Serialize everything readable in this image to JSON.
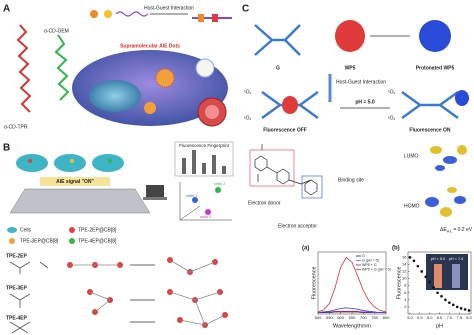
{
  "panel_a": {
    "label": "A",
    "alpha_cd_gem": "α-CD-GEM",
    "alpha_cd_tpr": "α-CD-TPR",
    "interaction": "Host-Guest Interaction",
    "dots": "Supramolecular AIE Dots"
  },
  "panel_b": {
    "label": "B",
    "signal": "AIE signal \"ON\"",
    "fingerprint": "Fluorescence Fingerprint",
    "clusters": [
      "cells 1",
      "cells 2",
      "cells 3"
    ],
    "legend": [
      "Cells",
      "TPE-2EP@CB[8]",
      "TPE-3EP@CB[8]",
      "TPE-4EP@CB[8]"
    ],
    "molecules": [
      "TPE-2EP",
      "TPE-3EP",
      "TPE-4EP"
    ]
  },
  "panel_c": {
    "label": "C",
    "guest": "G",
    "host": "WP5",
    "protonated": "Protonated WP5",
    "interaction": "Host-Guest Interaction",
    "ph": "pH = 5.0",
    "singlet_oxygen": "¹O₂",
    "off": "Fluorescence OFF",
    "on": "Fluorescence ON",
    "binding": "Binding site",
    "donor": "Electron donor",
    "acceptor": "Electron acceptor",
    "lumo": "LUMO",
    "homo": "HOMO",
    "gap_symbol": "ΔE",
    "gap_subscript": "H-L",
    "gap_value": "= 0.2 eV"
  },
  "chart_data": [
    {
      "type": "line",
      "title": "(a)",
      "x_label": "Wavelength/nm",
      "y_label": "Fluorescence",
      "x": [
        500,
        525,
        550,
        575,
        600,
        625,
        650,
        675,
        700,
        725,
        750,
        775,
        800
      ],
      "xlim": [
        500,
        800
      ],
      "xticks": [
        500,
        550,
        600,
        650,
        700,
        750,
        800
      ],
      "ylim": [
        0,
        90
      ],
      "series": [
        {
          "name": "G",
          "color": "#222222",
          "values": [
            2,
            2,
            2,
            3,
            3,
            3,
            3,
            3,
            2,
            2,
            2,
            2,
            2
          ]
        },
        {
          "name": "G (pH = 5)",
          "color": "#c837c8",
          "values": [
            2,
            3,
            3,
            4,
            4,
            4,
            4,
            4,
            3,
            3,
            2,
            2,
            2
          ]
        },
        {
          "name": "WP5 + G",
          "color": "#2a4bd7",
          "values": [
            2,
            3,
            4,
            6,
            8,
            9,
            8,
            7,
            5,
            4,
            3,
            2,
            2
          ]
        },
        {
          "name": "WP5 + G (pH = 5)",
          "color": "#e03030",
          "values": [
            3,
            6,
            15,
            38,
            68,
            82,
            75,
            55,
            34,
            19,
            10,
            5,
            3
          ]
        }
      ],
      "legend": "upper right"
    },
    {
      "type": "scatter",
      "title": "(b)",
      "x_label": "pH",
      "y_label": "Fluorescence",
      "color": "#111111",
      "x": [
        5.0,
        5.2,
        5.4,
        5.6,
        5.8,
        6.0,
        6.2,
        6.4,
        6.6,
        6.8,
        7.0,
        7.2,
        7.4,
        7.6,
        7.8,
        8.0
      ],
      "values": [
        16,
        15,
        13.5,
        12,
        10.5,
        9,
        7.5,
        6,
        5,
        4,
        3.2,
        2.6,
        2,
        1.6,
        1.3,
        1
      ],
      "xlim": [
        4.9,
        8.1
      ],
      "xticks": [
        {
          "value": 5,
          "label": "5.0"
        },
        5.5,
        {
          "value": 6,
          "label": "6.0"
        },
        6.5,
        {
          "value": 7,
          "label": "7.0"
        },
        7.5,
        {
          "value": 8,
          "label": "8.0"
        }
      ],
      "ylim": [
        0,
        17.5
      ],
      "yticks": [
        2,
        4,
        6,
        8,
        10,
        12,
        14,
        16
      ],
      "inset_labels": [
        "pH = 5.0",
        "pH = 7.4"
      ]
    }
  ]
}
